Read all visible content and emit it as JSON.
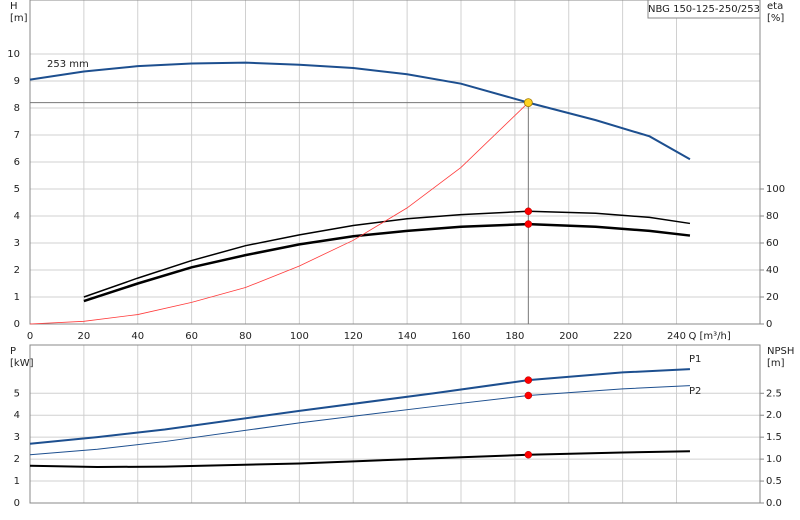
{
  "chart_data": [
    {
      "type": "line",
      "title": "NBG 150-125-250/253",
      "ylabel": "H",
      "yunit": "[m]",
      "y2label": "eta",
      "y2unit": "[%]",
      "xlabel": "Q [m³/h]",
      "xlim": [
        0,
        271
      ],
      "xticks": [
        0,
        20,
        40,
        60,
        80,
        100,
        120,
        140,
        160,
        180,
        200,
        220,
        240
      ],
      "ylim": [
        0,
        12
      ],
      "yticks": [
        0,
        1,
        2,
        3,
        4,
        5,
        6,
        7,
        8,
        9,
        10
      ],
      "y2lim": [
        0,
        240
      ],
      "y2ticks": [
        0,
        20,
        40,
        60,
        80,
        100
      ],
      "grid": true,
      "xtick_labels": true,
      "x": [
        0,
        20,
        40,
        60,
        80,
        100,
        120,
        140,
        160,
        185,
        210,
        230,
        245
      ],
      "series": [
        {
          "name": "253 mm",
          "color": "#1d4f8f",
          "line_width": 2,
          "values": [
            9.05,
            9.35,
            9.55,
            9.65,
            9.68,
            9.6,
            9.48,
            9.25,
            8.9,
            8.2,
            7.55,
            6.95,
            6.1
          ]
        },
        {
          "color": "#000000",
          "line_width": 1.5,
          "axis": "y2",
          "marker": true,
          "values": [
            null,
            20,
            34,
            47,
            58,
            66,
            73,
            78,
            81,
            83.5,
            82,
            79,
            74.5
          ]
        },
        {
          "color": "#000000",
          "line_width": 2.5,
          "axis": "y2",
          "marker": true,
          "values": [
            null,
            17,
            30,
            42,
            51,
            59,
            65,
            69,
            72,
            74,
            72,
            69,
            65.5
          ]
        },
        {
          "color": "#ff3b3b",
          "line_width": 0.8,
          "values": [
            0,
            0.1,
            0.35,
            0.8,
            1.35,
            2.15,
            3.1,
            4.3,
            5.8,
            8.2,
            null,
            null,
            null
          ]
        }
      ],
      "duty_point": {
        "x": 185,
        "y": 8.2,
        "color": "#ffd21f"
      },
      "marker_color": "#ff0000"
    },
    {
      "type": "line",
      "ylabel": "P",
      "yunit": "[kW]",
      "y2label": "NPSH",
      "y2unit": "[m]",
      "xlim": [
        0,
        271
      ],
      "xticks": [
        0,
        20,
        40,
        60,
        80,
        100,
        120,
        140,
        160,
        180,
        200,
        220,
        240
      ],
      "ylim": [
        0,
        7.2
      ],
      "yticks": [
        0,
        1,
        2,
        3,
        4,
        5
      ],
      "y2lim": [
        0,
        3.6
      ],
      "y2ticks": [
        {
          "value": 0,
          "label": "0.0"
        },
        0.5,
        {
          "value": 1,
          "label": "1.0"
        },
        1.5,
        {
          "value": 2,
          "label": "2.0"
        },
        2.5
      ],
      "grid": true,
      "xtick_labels": false,
      "x": [
        0,
        25,
        50,
        100,
        150,
        185,
        220,
        245
      ],
      "series": [
        {
          "name": "P1",
          "color": "#1d4f8f",
          "line_width": 2,
          "marker": true,
          "values": [
            2.7,
            3.0,
            3.35,
            4.2,
            5.0,
            5.6,
            5.95,
            6.1
          ]
        },
        {
          "name": "P2",
          "color": "#1d4f8f",
          "line_width": 1,
          "marker": true,
          "values": [
            2.2,
            2.45,
            2.8,
            3.65,
            4.4,
            4.9,
            5.2,
            5.35
          ]
        },
        {
          "color": "#000000",
          "line_width": 2,
          "axis": "y2",
          "marker": true,
          "values": [
            0.85,
            0.82,
            0.83,
            0.9,
            1.02,
            1.1,
            1.15,
            1.18
          ]
        }
      ],
      "duty_point": {
        "x": 185
      },
      "marker_color": "#ff0000"
    }
  ]
}
